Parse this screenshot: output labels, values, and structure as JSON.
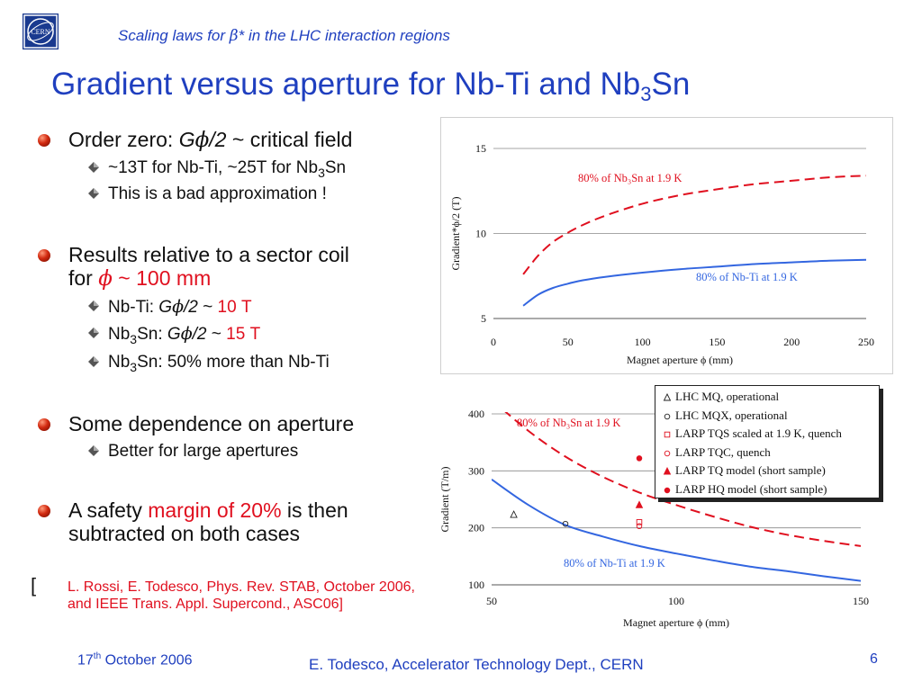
{
  "header": {
    "logo_text": "CERN",
    "subtitle_pre": "Scaling laws for ",
    "subtitle_sym": "β",
    "subtitle_post": "* in the LHC interaction regions",
    "title_main": "Gradient versus aperture for Nb-Ti and Nb",
    "title_sub": "3",
    "title_end": "Sn"
  },
  "bullets": {
    "b1": {
      "pre": "Order zero: ",
      "g": "G",
      "phi": "ϕ",
      "rest": "/2 ",
      "tilde": "~",
      "post": " critical field"
    },
    "b1a": {
      "tilde1": "~",
      "t1": "13T for Nb-Ti, ",
      "tilde2": "~",
      "t2": "25T for Nb",
      "sub": "3",
      "end": "Sn"
    },
    "b1b": "This is a bad approximation !",
    "b2_line1": "Results relative to a sector coil",
    "b2_line2_pre": "for ",
    "b2_phi": "ϕ",
    "b2_tilde": " ~ ",
    "b2_val": "100 mm",
    "b2a": {
      "pre": "Nb-Ti: ",
      "g": "G",
      "phi": "ϕ",
      "rest": "/2",
      "tilde": " ~ ",
      "val": "10 T"
    },
    "b2b": {
      "pre": "Nb",
      "sub": "3",
      "mid": "Sn: ",
      "g": "G",
      "phi": "ϕ",
      "rest": "/2",
      "tilde": " ~ ",
      "val": "15 T"
    },
    "b2c": {
      "pre": "Nb",
      "sub": "3",
      "post": "Sn: 50% more than Nb-Ti"
    },
    "b3": "Some dependence on aperture",
    "b3a": "Better for large apertures",
    "b4_pre": "A safety ",
    "b4_red": "margin of 20%",
    "b4_post": " is then",
    "b4_line2": "subtracted on both cases",
    "ref_bracket": "[",
    "ref_text": "L. Rossi, E. Todesco, Phys. Rev. STAB, October 2006, and IEEE Trans. Appl. Supercond., ASC06]"
  },
  "footer": {
    "date_pre": "17",
    "date_sup": "th",
    "date_post": " October 2006",
    "author": "E. Todesco, Accelerator Technology Dept., CERN",
    "page": "6"
  },
  "chart_data": [
    {
      "type": "line",
      "xlabel": "Magnet aperture ϕ (mm)",
      "ylabel": "Gradient*ϕ/2 (T)",
      "xlim": [
        0,
        250
      ],
      "ylim": [
        5,
        15
      ],
      "xticks": [
        "0",
        "50",
        "100",
        "150",
        "200",
        "250"
      ],
      "yticks": [
        "5",
        "10",
        "15"
      ],
      "grid_y": [
        10,
        15
      ],
      "series": [
        {
          "name": "80% of Nb₃Sn at 1.9 K",
          "color": "#e0101f",
          "dash": true,
          "x": [
            20,
            30,
            40,
            50,
            60,
            75,
            100,
            125,
            150,
            175,
            200,
            225,
            250
          ],
          "y": [
            7.6,
            8.7,
            9.5,
            10.05,
            10.5,
            11.05,
            11.75,
            12.25,
            12.6,
            12.9,
            13.1,
            13.3,
            13.4
          ]
        },
        {
          "name": "80% of Nb-Ti at 1.9 K",
          "color": "#3366e0",
          "dash": false,
          "x": [
            20,
            30,
            40,
            50,
            60,
            75,
            100,
            125,
            150,
            175,
            200,
            225,
            250
          ],
          "y": [
            5.75,
            6.4,
            6.8,
            7.05,
            7.25,
            7.45,
            7.7,
            7.9,
            8.05,
            8.2,
            8.3,
            8.4,
            8.45
          ]
        }
      ]
    },
    {
      "type": "line",
      "xlabel": "Magnet aperture ϕ (mm)",
      "ylabel": "Gradient (T/m)",
      "xlim": [
        50,
        150
      ],
      "ylim": [
        100,
        400
      ],
      "xticks": [
        "50",
        "100",
        "150"
      ],
      "yticks": [
        "100",
        "200",
        "300",
        "400"
      ],
      "grid_y": [
        200,
        300,
        400
      ],
      "series": [
        {
          "name": "80% of Nb₃Sn at 1.9 K",
          "color": "#e0101f",
          "dash": true,
          "x": [
            50,
            60,
            70,
            80,
            90,
            100,
            110,
            120,
            130,
            140,
            150
          ],
          "y": [
            425,
            370,
            325,
            290,
            262,
            240,
            220,
            202,
            188,
            177,
            168
          ]
        },
        {
          "name": "80% of Nb-Ti at 1.9 K",
          "color": "#3366e0",
          "dash": false,
          "x": [
            50,
            60,
            70,
            80,
            90,
            100,
            110,
            120,
            130,
            140,
            150
          ],
          "y": [
            285,
            240,
            205,
            185,
            168,
            155,
            143,
            132,
            124,
            115,
            107
          ]
        }
      ],
      "points": [
        {
          "label": "LHC MQ, operational",
          "marker": "triangle-open",
          "color": "#222222",
          "x": 56,
          "y": 223
        },
        {
          "label": "LHC MQX, operational",
          "marker": "circle-open",
          "color": "#222222",
          "x": 70,
          "y": 207
        },
        {
          "label": "LARP TQS scaled at 1.9 K, quench",
          "marker": "square-open",
          "color": "#e0101f",
          "x": 90,
          "y": 210
        },
        {
          "label": "LARP TQC, quench",
          "marker": "circle-open",
          "color": "#e0101f",
          "x": 90,
          "y": 203
        },
        {
          "label": "LARP TQ model (short sample)",
          "marker": "triangle-filled",
          "color": "#e0101f",
          "x": 90,
          "y": 240
        },
        {
          "label": "LARP HQ model (short sample)",
          "marker": "circle-filled",
          "color": "#e0101f",
          "x": 90,
          "y": 322
        }
      ]
    }
  ]
}
